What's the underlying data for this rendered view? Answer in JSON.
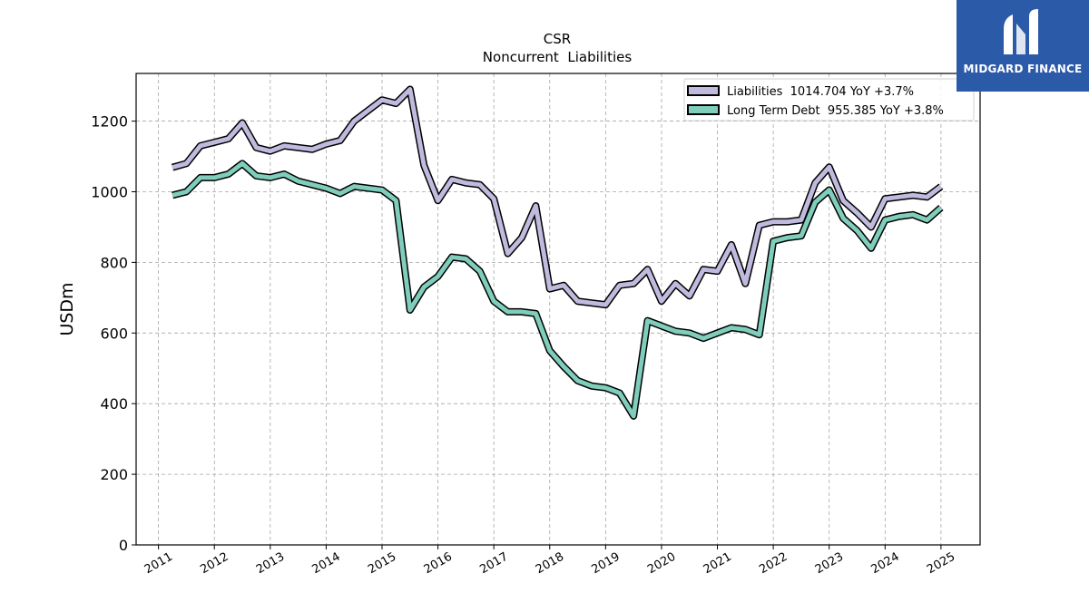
{
  "brand": {
    "name": "MIDGARD FINANCE",
    "icon": "midgard-logo-icon",
    "color": "#2b5aa8"
  },
  "chart_data": {
    "type": "line",
    "title": "CSR",
    "subtitle": "Noncurrent  Liabilities",
    "xlabel": "",
    "ylabel": "USDm",
    "xlim": [
      2010.6,
      2025.7
    ],
    "ylim": [
      0,
      1335
    ],
    "xticks": [
      2011,
      2012,
      2013,
      2014,
      2015,
      2016,
      2017,
      2018,
      2019,
      2020,
      2021,
      2022,
      2023,
      2024,
      2025
    ],
    "xtick_labels": [
      "2011",
      "2012",
      "2013",
      "2014",
      "2015",
      "2016",
      "2017",
      "2018",
      "2019",
      "2020",
      "2021",
      "2022",
      "2023",
      "2024",
      "2025"
    ],
    "yticks": [
      0,
      200,
      400,
      600,
      800,
      1000,
      1200
    ],
    "ytick_labels": [
      "0",
      "200",
      "400",
      "600",
      "800",
      "1000",
      "1200"
    ],
    "grid": true,
    "legend_position": "top-right",
    "x": [
      2011.25,
      2011.5,
      2011.75,
      2012.0,
      2012.25,
      2012.5,
      2012.75,
      2013.0,
      2013.25,
      2013.5,
      2013.75,
      2014.0,
      2014.25,
      2014.5,
      2014.75,
      2015.0,
      2015.25,
      2015.5,
      2015.75,
      2016.0,
      2016.25,
      2016.5,
      2016.75,
      2017.0,
      2017.25,
      2017.5,
      2017.75,
      2018.0,
      2018.25,
      2018.5,
      2018.75,
      2019.0,
      2019.25,
      2019.5,
      2019.75,
      2020.0,
      2020.25,
      2020.5,
      2020.75,
      2021.0,
      2021.25,
      2021.5,
      2021.75,
      2022.0,
      2022.25,
      2022.5,
      2022.75,
      2023.0,
      2023.25,
      2023.5,
      2023.75,
      2024.0,
      2024.25,
      2024.5,
      2024.75,
      2025.0
    ],
    "series": [
      {
        "name": "Liabilities",
        "legend_label": "Liabilities  1014.704 YoY +3.7%",
        "color": "#c0bade",
        "values": [
          1069,
          1080,
          1130,
          1140,
          1150,
          1195,
          1125,
          1115,
          1130,
          1125,
          1120,
          1135,
          1145,
          1200,
          1230,
          1260,
          1250,
          1290,
          1075,
          975,
          1035,
          1025,
          1020,
          980,
          825,
          870,
          960,
          725,
          735,
          690,
          685,
          680,
          735,
          740,
          780,
          690,
          740,
          705,
          780,
          775,
          850,
          740,
          905,
          915,
          915,
          920,
          1025,
          1070,
          975,
          940,
          900,
          980,
          985,
          990,
          985,
          1015
        ]
      },
      {
        "name": "Long Term Debt",
        "legend_label": "Long Term Debt  955.385 YoY +3.8%",
        "color": "#7fcdbb",
        "values": [
          990,
          1000,
          1040,
          1040,
          1050,
          1080,
          1045,
          1040,
          1050,
          1030,
          1020,
          1010,
          995,
          1015,
          1010,
          1005,
          975,
          665,
          730,
          760,
          815,
          810,
          775,
          690,
          660,
          660,
          655,
          550,
          505,
          465,
          450,
          445,
          430,
          365,
          635,
          620,
          605,
          600,
          585,
          600,
          615,
          610,
          595,
          860,
          870,
          875,
          970,
          1005,
          925,
          890,
          840,
          920,
          930,
          935,
          920,
          955
        ]
      }
    ]
  }
}
